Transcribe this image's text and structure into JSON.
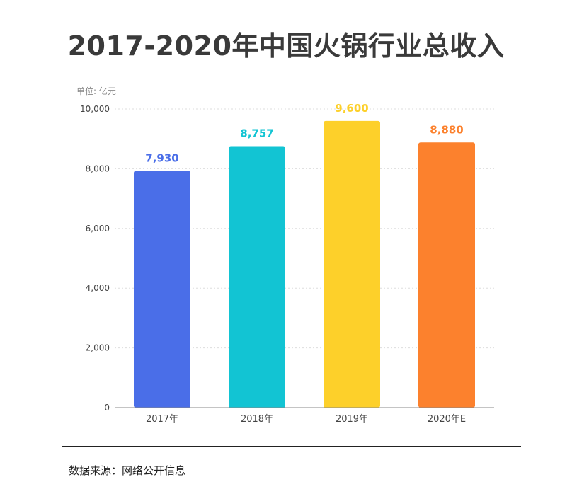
{
  "title": "2017-2020年中国火锅行业总收入",
  "source": "数据来源：网络公开信息",
  "chart_data": {
    "type": "bar",
    "title": "2017-2020年中国火锅行业总收入",
    "unit_label": "单位: 亿元",
    "categories": [
      "2017年",
      "2018年",
      "2019年",
      "2020年E"
    ],
    "values": [
      7930,
      8757,
      9600,
      8880
    ],
    "value_labels": [
      "7,930",
      "8,757",
      "9,600",
      "8,880"
    ],
    "colors": [
      "#4a6ee8",
      "#12c4d3",
      "#fdd02a",
      "#fc812d"
    ],
    "ylim": [
      0,
      10000
    ],
    "yticks": [
      0,
      2000,
      4000,
      6000,
      8000,
      10000
    ],
    "ytick_labels": [
      "0",
      "2,000",
      "4,000",
      "6,000",
      "8,000",
      "10,000"
    ],
    "grid": true,
    "legend": "none"
  }
}
